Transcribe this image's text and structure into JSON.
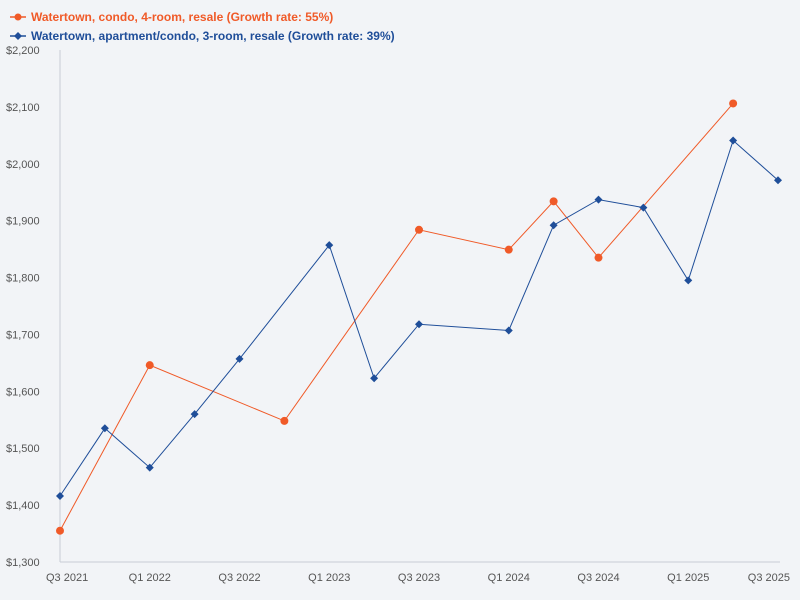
{
  "chart_data": {
    "type": "line",
    "title": "",
    "xlabel": "",
    "ylabel": "",
    "ylim": [
      1300,
      2200
    ],
    "y_ticks": [
      1300,
      1400,
      1500,
      1600,
      1700,
      1800,
      1900,
      2000,
      2100,
      2200
    ],
    "y_tick_labels": [
      "$1,300",
      "$1,400",
      "$1,500",
      "$1,600",
      "$1,700",
      "$1,800",
      "$1,900",
      "$2,000",
      "$2,100",
      "$2,200"
    ],
    "x_range": [
      0,
      16
    ],
    "x_ticks": [
      0,
      2,
      4,
      6,
      8,
      10,
      12,
      14,
      16
    ],
    "x_tick_labels": [
      "Q3 2021",
      "Q1 2022",
      "Q3 2022",
      "Q1 2023",
      "Q3 2023",
      "Q1 2024",
      "Q3 2024",
      "Q1 2025",
      "Q3 2025"
    ],
    "grid": false,
    "legend_position": "top-left",
    "series": [
      {
        "name": "Watertown, condo, 4-room, resale (Growth rate: 55%)",
        "color": "#f05a28",
        "marker": "circle",
        "x": [
          0,
          2,
          5,
          8,
          10,
          11,
          12,
          15
        ],
        "values": [
          1355,
          1646,
          1548,
          1884,
          1849,
          1934,
          1835,
          2106
        ]
      },
      {
        "name": "Watertown, apartment/condo, 3-room, resale (Growth rate: 39%)",
        "color": "#1f4e99",
        "marker": "diamond",
        "x": [
          0,
          1,
          2,
          3,
          4,
          6,
          7,
          8,
          10,
          11,
          12,
          13,
          14,
          15,
          16
        ],
        "values": [
          1416,
          1535,
          1466,
          1560,
          1657,
          1857,
          1623,
          1718,
          1707,
          1892,
          1937,
          1923,
          1795,
          2041,
          1971
        ]
      }
    ]
  }
}
